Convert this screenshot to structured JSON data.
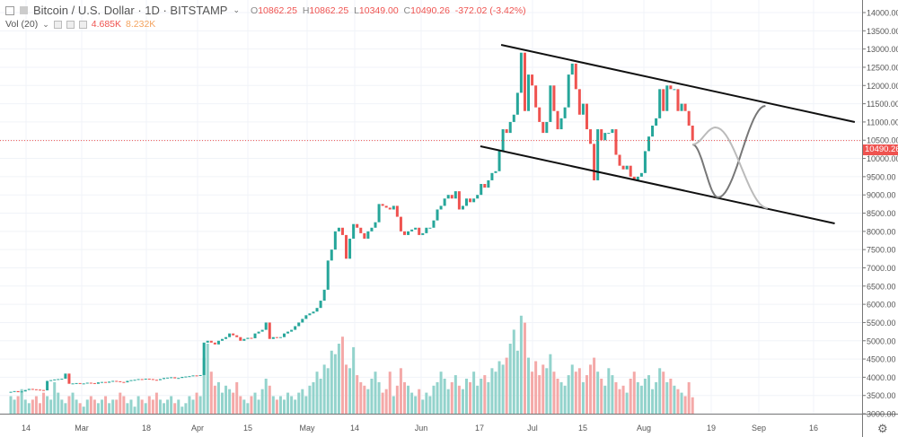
{
  "header": {
    "symbol": "Bitcoin / U.S. Dollar · 1D · BITSTAMP",
    "open_label": "O",
    "open": "10862.25",
    "high_label": "H",
    "high": "10862.25",
    "low_label": "L",
    "low": "10349.00",
    "close_label": "C",
    "close": "10490.26",
    "change": "-372.02 (-3.42%)"
  },
  "volume_indicator": {
    "label": "Vol (20)",
    "value": "4.685K",
    "ma_value": "8.232K"
  },
  "last_price_label": "10490.26",
  "colors": {
    "up": "#26a69a",
    "down": "#ef5350",
    "up_volume": "#93d3cc",
    "down_volume": "#f4a9a8",
    "price_line": "#ef5350",
    "channel": "#111111",
    "projection_dark": "#777777",
    "projection_light": "#bbbbbb"
  },
  "chart_data": {
    "type": "candlestick",
    "title": "",
    "symbol": "BTCUSD",
    "interval": "1D",
    "y_axis": {
      "min": 3000,
      "max": 14000,
      "step": 500,
      "scale": "linear",
      "position": "right",
      "tick_labels": [
        "14000.00",
        "13500.00",
        "13000.00",
        "12500.00",
        "12000.00",
        "11500.00",
        "11000.00",
        "10500.00",
        "10000.00",
        "9500.00",
        "9000.00",
        "8500.00",
        "8000.00",
        "7500.00",
        "7000.00",
        "6500.00",
        "6000.00",
        "5500.00",
        "5000.00",
        "4500.00",
        "4000.00",
        "3500.00",
        "3000.00"
      ]
    },
    "x_axis": {
      "tick_labels": [
        "14",
        "Mar",
        "18",
        "Apr",
        "15",
        "May",
        "14",
        "Jun",
        "17",
        "Jul",
        "15",
        "Aug",
        "19",
        "Sep",
        "16"
      ]
    },
    "grid": true,
    "closes": [
      3600,
      3620,
      3590,
      3610,
      3650,
      3680,
      3670,
      3660,
      3650,
      3640,
      3900,
      3920,
      3940,
      3950,
      3960,
      4100,
      3820,
      3830,
      3840,
      3820,
      3830,
      3850,
      3840,
      3820,
      3860,
      3870,
      3850,
      3880,
      3900,
      3890,
      3870,
      3860,
      3900,
      3920,
      3930,
      3950,
      3940,
      3960,
      3950,
      3930,
      3920,
      3950,
      3980,
      3990,
      4000,
      3970,
      3980,
      4010,
      4020,
      4030,
      4050,
      4040,
      4060,
      4950,
      5000,
      4950,
      4900,
      5000,
      5050,
      5100,
      5200,
      5150,
      5100,
      5000,
      5050,
      5080,
      5070,
      5200,
      5250,
      5300,
      5500,
      5050,
      5100,
      5080,
      5100,
      5200,
      5250,
      5300,
      5400,
      5500,
      5600,
      5700,
      5750,
      5800,
      5900,
      6100,
      6400,
      7200,
      7500,
      8000,
      8100,
      7900,
      7250,
      7800,
      8200,
      8100,
      7950,
      7800,
      8000,
      8100,
      8250,
      8750,
      8700,
      8650,
      8600,
      8700,
      8400,
      8000,
      7900,
      8000,
      8050,
      8100,
      7900,
      7950,
      8100,
      8100,
      8300,
      8600,
      8700,
      8900,
      9000,
      8900,
      9100,
      8600,
      8700,
      8900,
      8800,
      8900,
      9000,
      9300,
      9200,
      9400,
      9600,
      9650,
      10200,
      10800,
      10700,
      11000,
      11200,
      11800,
      12900,
      11300,
      12300,
      12000,
      11400,
      11000,
      10700,
      11000,
      12000,
      11300,
      10800,
      11100,
      11400,
      12300,
      12600,
      11900,
      11200,
      11500,
      10800,
      10400,
      9400,
      10800,
      10500,
      10700,
      10700,
      10800,
      10100,
      9800,
      9700,
      9800,
      9500,
      9400,
      9500,
      9600,
      10200,
      10600,
      10900,
      11100,
      11900,
      11300,
      12000,
      11900,
      11900,
      11300,
      11500,
      11300,
      10900,
      10490.26
    ],
    "first_open": 3580,
    "volume_k": [
      5,
      4,
      5,
      7,
      4,
      3,
      4,
      5,
      3,
      6,
      5,
      4,
      9,
      6,
      4,
      3,
      5,
      6,
      4,
      3,
      2,
      4,
      5,
      4,
      3,
      4,
      5,
      3,
      4,
      4,
      6,
      5,
      3,
      4,
      2,
      5,
      4,
      3,
      5,
      4,
      6,
      4,
      3,
      4,
      5,
      3,
      4,
      2,
      3,
      5,
      4,
      6,
      5,
      16,
      20,
      12,
      8,
      9,
      6,
      8,
      7,
      6,
      9,
      5,
      4,
      3,
      5,
      6,
      4,
      7,
      10,
      8,
      5,
      4,
      5,
      4,
      6,
      5,
      4,
      6,
      7,
      5,
      8,
      9,
      12,
      10,
      14,
      13,
      18,
      17,
      20,
      22,
      14,
      13,
      19,
      11,
      9,
      8,
      7,
      10,
      12,
      9,
      6,
      7,
      12,
      5,
      8,
      13,
      9,
      8,
      6,
      5,
      7,
      4,
      6,
      5,
      8,
      9,
      12,
      10,
      7,
      9,
      11,
      8,
      7,
      10,
      9,
      12,
      8,
      10,
      11,
      9,
      13,
      12,
      15,
      14,
      16,
      20,
      24,
      18,
      28,
      26,
      16,
      12,
      15,
      11,
      14,
      13,
      17,
      12,
      10,
      9,
      8,
      11,
      14,
      12,
      13,
      9,
      11,
      14,
      16,
      12,
      10,
      8,
      13,
      11,
      9,
      7,
      8,
      6,
      10,
      12,
      9,
      8,
      10,
      11,
      7,
      9,
      13,
      12,
      9,
      10,
      8,
      7,
      6,
      5,
      9,
      4.685
    ],
    "last_price": 10490.26,
    "annotations": [
      {
        "type": "trendline",
        "name": "channel-upper",
        "points": [
          [
            134.5,
            13114
          ],
          [
            231.5,
            10998
          ]
        ]
      },
      {
        "type": "trendline",
        "name": "channel-lower",
        "points": [
          [
            128.8,
            10334
          ],
          [
            226,
            8218
          ]
        ]
      },
      {
        "type": "path",
        "name": "projection-down-then-up",
        "points": [
          [
            187,
            10383
          ],
          [
            194,
            8931
          ],
          [
            207,
            11441
          ]
        ]
      },
      {
        "type": "path",
        "name": "projection-up-then-down",
        "points": [
          [
            187,
            10383
          ],
          [
            193.3,
            10850
          ],
          [
            207.6,
            8636
          ]
        ]
      }
    ]
  }
}
